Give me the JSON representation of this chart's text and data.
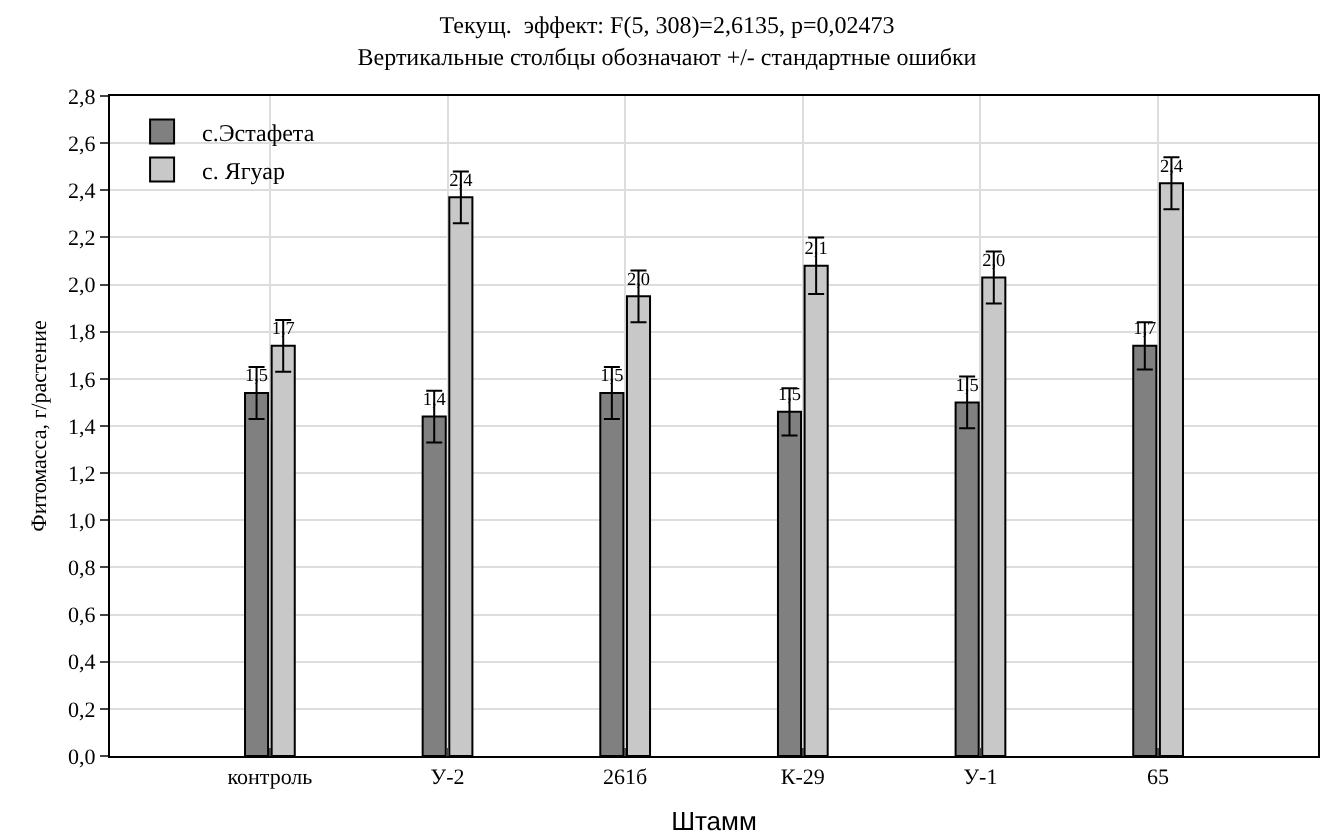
{
  "chart_data": {
    "type": "bar",
    "title": "Текущ.  эффект: F(5, 308)=2,6135, p=0,02473",
    "subtitle": "Вертикальные столбцы обозначают +/- стандартные ошибки",
    "xlabel": "Штамм",
    "ylabel": "Фитомасса, г/растение",
    "categories": [
      "контроль",
      "У-2",
      "261б",
      "К-29",
      "У-1",
      "65"
    ],
    "series": [
      {
        "name": "с.Эстафета",
        "color": "#808080",
        "values": [
          1.54,
          1.44,
          1.54,
          1.46,
          1.5,
          1.74
        ],
        "errors": [
          0.11,
          0.11,
          0.11,
          0.1,
          0.11,
          0.1
        ],
        "value_labels": [
          "1,5",
          "1,4",
          "1,5",
          "1,5",
          "1,5",
          "1,7"
        ]
      },
      {
        "name": "с. Ягуар",
        "color": "#c8c8c8",
        "values": [
          1.74,
          2.37,
          1.95,
          2.08,
          2.03,
          2.43
        ],
        "errors": [
          0.11,
          0.11,
          0.11,
          0.12,
          0.11,
          0.11
        ],
        "value_labels": [
          "1,7",
          "2,4",
          "2,0",
          "2,1",
          "2,0",
          "2,4"
        ]
      }
    ],
    "ylim": [
      0,
      2.8
    ],
    "yticks": [
      {
        "value": 0,
        "label": "0,0"
      },
      {
        "value": 0.2,
        "label": "0,2"
      },
      {
        "value": 0.4,
        "label": "0,4"
      },
      {
        "value": 0.6,
        "label": "0,6"
      },
      {
        "value": 0.8,
        "label": "0,8"
      },
      {
        "value": 1.0,
        "label": "1,0"
      },
      {
        "value": 1.2,
        "label": "1,2"
      },
      {
        "value": 1.4,
        "label": "1,4"
      },
      {
        "value": 1.6,
        "label": "1,6"
      },
      {
        "value": 1.8,
        "label": "1,8"
      },
      {
        "value": 2.0,
        "label": "2,0"
      },
      {
        "value": 2.2,
        "label": "2,2"
      },
      {
        "value": 2.4,
        "label": "2,4"
      },
      {
        "value": 2.6,
        "label": "2,6"
      },
      {
        "value": 2.8,
        "label": "2,8"
      }
    ],
    "grid": true,
    "legend": "top left"
  }
}
